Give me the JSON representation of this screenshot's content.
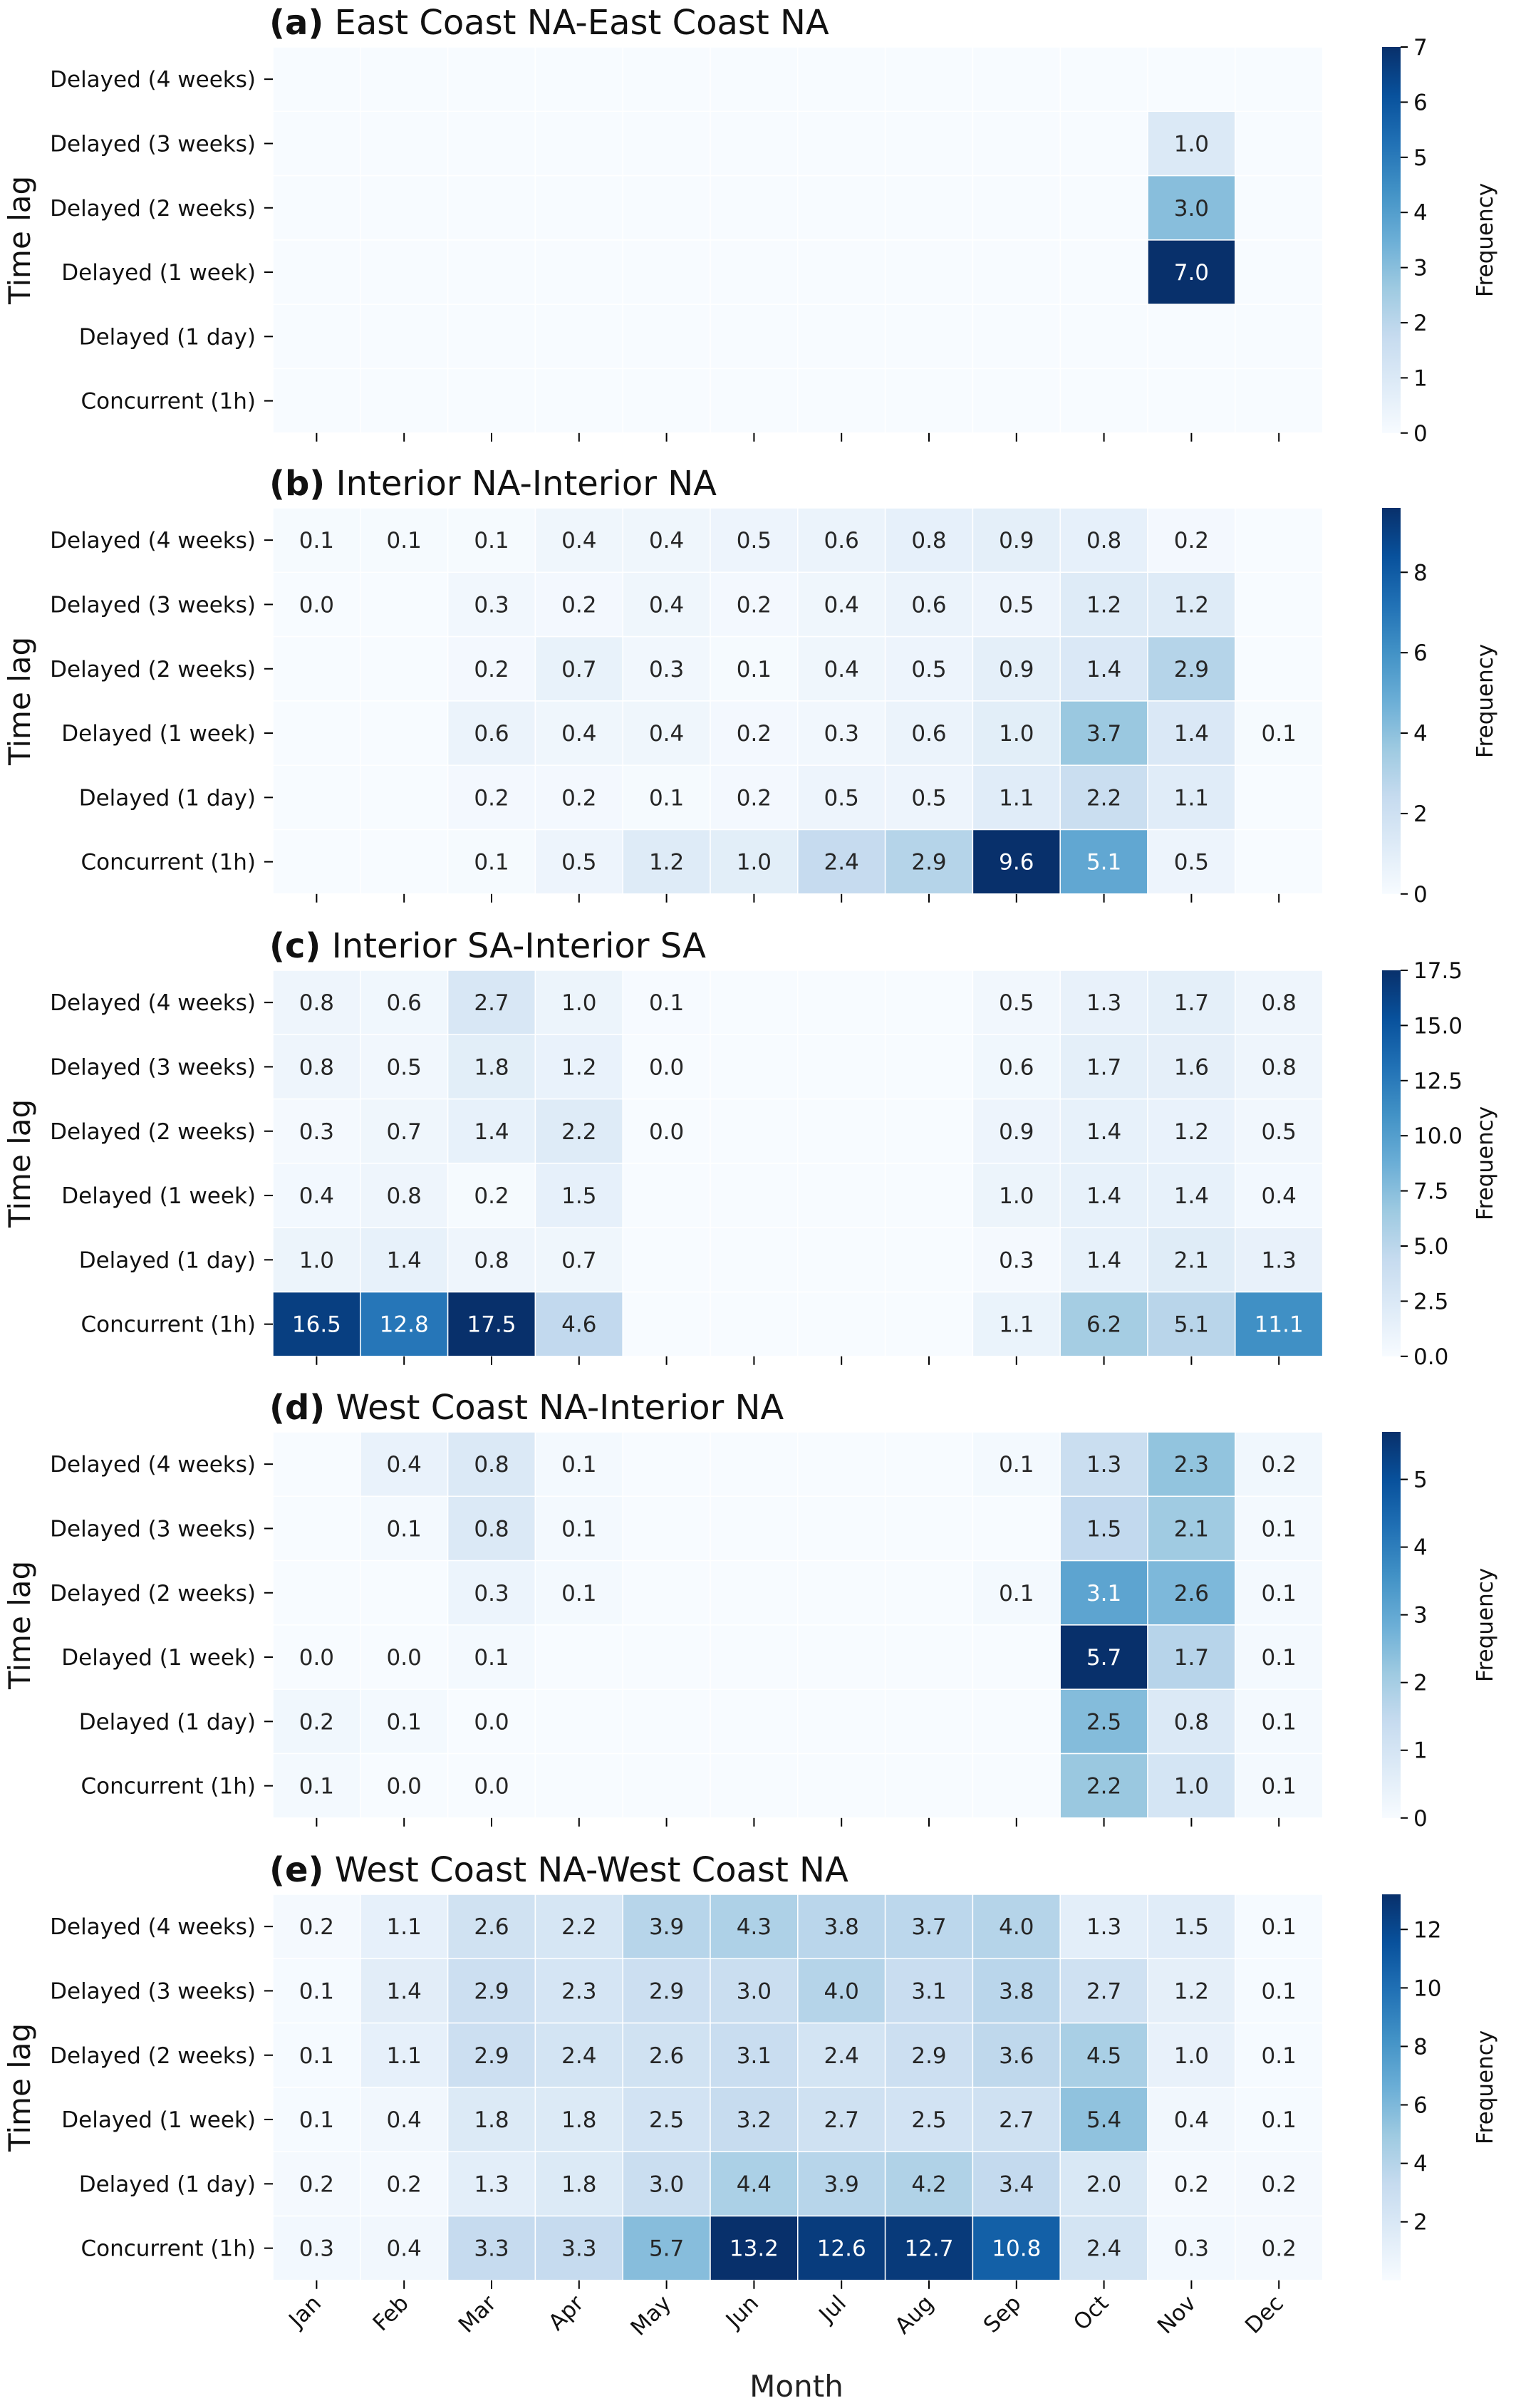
{
  "figure": {
    "xlabel": "Month",
    "months": [
      "Jan",
      "Feb",
      "Mar",
      "Apr",
      "May",
      "Jun",
      "Jul",
      "Aug",
      "Sep",
      "Oct",
      "Nov",
      "Dec"
    ],
    "time_lags": [
      "Delayed (4 weeks)",
      "Delayed (3 weeks)",
      "Delayed (2 weeks)",
      "Delayed (1 week)",
      "Delayed (1 day)",
      "Concurrent (1h)"
    ]
  },
  "colormap": {
    "name": "Blues",
    "low": "#f7fbff",
    "high": "#08306b"
  },
  "chart_data": [
    {
      "type": "heatmap",
      "panel": "(a)",
      "title": "East Coast NA-East Coast NA",
      "ylabel": "Time lag",
      "colorbar_label": "Frequency",
      "vmin": 0,
      "vmax": 7,
      "colorbar_ticks": [
        "0",
        "1",
        "2",
        "3",
        "4",
        "5",
        "6",
        "7"
      ],
      "x": [
        "Jan",
        "Feb",
        "Mar",
        "Apr",
        "May",
        "Jun",
        "Jul",
        "Aug",
        "Sep",
        "Oct",
        "Nov",
        "Dec"
      ],
      "y": [
        "Delayed (4 weeks)",
        "Delayed (3 weeks)",
        "Delayed (2 weeks)",
        "Delayed (1 week)",
        "Delayed (1 day)",
        "Concurrent (1h)"
      ],
      "values": [
        [
          null,
          null,
          null,
          null,
          null,
          null,
          null,
          null,
          null,
          null,
          null,
          null
        ],
        [
          null,
          null,
          null,
          null,
          null,
          null,
          null,
          null,
          null,
          null,
          1.0,
          null
        ],
        [
          null,
          null,
          null,
          null,
          null,
          null,
          null,
          null,
          null,
          null,
          3.0,
          null
        ],
        [
          null,
          null,
          null,
          null,
          null,
          null,
          null,
          null,
          null,
          null,
          7.0,
          null
        ],
        [
          null,
          null,
          null,
          null,
          null,
          null,
          null,
          null,
          null,
          null,
          null,
          null
        ],
        [
          null,
          null,
          null,
          null,
          null,
          null,
          null,
          null,
          null,
          null,
          null,
          null
        ]
      ]
    },
    {
      "type": "heatmap",
      "panel": "(b)",
      "title": "Interior NA-Interior NA",
      "ylabel": "Time lag",
      "colorbar_label": "Frequency",
      "vmin": 0,
      "vmax": 9.6,
      "colorbar_ticks": [
        "0",
        "2",
        "4",
        "6",
        "8"
      ],
      "x": [
        "Jan",
        "Feb",
        "Mar",
        "Apr",
        "May",
        "Jun",
        "Jul",
        "Aug",
        "Sep",
        "Oct",
        "Nov",
        "Dec"
      ],
      "y": [
        "Delayed (4 weeks)",
        "Delayed (3 weeks)",
        "Delayed (2 weeks)",
        "Delayed (1 week)",
        "Delayed (1 day)",
        "Concurrent (1h)"
      ],
      "values": [
        [
          0.1,
          0.1,
          0.1,
          0.4,
          0.4,
          0.5,
          0.6,
          0.8,
          0.9,
          0.8,
          0.2,
          null
        ],
        [
          0.0,
          null,
          0.3,
          0.2,
          0.4,
          0.2,
          0.4,
          0.6,
          0.5,
          1.2,
          1.2,
          null
        ],
        [
          null,
          null,
          0.2,
          0.7,
          0.3,
          0.1,
          0.4,
          0.5,
          0.9,
          1.4,
          2.9,
          null
        ],
        [
          null,
          null,
          0.6,
          0.4,
          0.4,
          0.2,
          0.3,
          0.6,
          1.0,
          3.7,
          1.4,
          0.1
        ],
        [
          null,
          null,
          0.2,
          0.2,
          0.1,
          0.2,
          0.5,
          0.5,
          1.1,
          2.2,
          1.1,
          null
        ],
        [
          null,
          null,
          0.1,
          0.5,
          1.2,
          1.0,
          2.4,
          2.9,
          9.6,
          5.1,
          0.5,
          null
        ]
      ]
    },
    {
      "type": "heatmap",
      "panel": "(c)",
      "title": "Interior SA-Interior SA",
      "ylabel": "Time lag",
      "colorbar_label": "Frequency",
      "vmin": 0,
      "vmax": 17.5,
      "colorbar_ticks": [
        "0.0",
        "2.5",
        "5.0",
        "7.5",
        "10.0",
        "12.5",
        "15.0",
        "17.5"
      ],
      "x": [
        "Jan",
        "Feb",
        "Mar",
        "Apr",
        "May",
        "Jun",
        "Jul",
        "Aug",
        "Sep",
        "Oct",
        "Nov",
        "Dec"
      ],
      "y": [
        "Delayed (4 weeks)",
        "Delayed (3 weeks)",
        "Delayed (2 weeks)",
        "Delayed (1 week)",
        "Delayed (1 day)",
        "Concurrent (1h)"
      ],
      "values": [
        [
          0.8,
          0.6,
          2.7,
          1.0,
          0.1,
          null,
          null,
          null,
          0.5,
          1.3,
          1.7,
          0.8
        ],
        [
          0.8,
          0.5,
          1.8,
          1.2,
          0.0,
          null,
          null,
          null,
          0.6,
          1.7,
          1.6,
          0.8
        ],
        [
          0.3,
          0.7,
          1.4,
          2.2,
          0.0,
          null,
          null,
          null,
          0.9,
          1.4,
          1.2,
          0.5
        ],
        [
          0.4,
          0.8,
          0.2,
          1.5,
          null,
          null,
          null,
          null,
          1.0,
          1.4,
          1.4,
          0.4
        ],
        [
          1.0,
          1.4,
          0.8,
          0.7,
          null,
          null,
          null,
          null,
          0.3,
          1.4,
          2.1,
          1.3
        ],
        [
          16.5,
          12.8,
          17.5,
          4.6,
          null,
          null,
          null,
          null,
          1.1,
          6.2,
          5.1,
          11.1
        ]
      ]
    },
    {
      "type": "heatmap",
      "panel": "(d)",
      "title": "West Coast NA-Interior NA",
      "ylabel": "Time lag",
      "colorbar_label": "Frequency",
      "vmin": 0,
      "vmax": 5.7,
      "colorbar_ticks": [
        "0",
        "1",
        "2",
        "3",
        "4",
        "5"
      ],
      "x": [
        "Jan",
        "Feb",
        "Mar",
        "Apr",
        "May",
        "Jun",
        "Jul",
        "Aug",
        "Sep",
        "Oct",
        "Nov",
        "Dec"
      ],
      "y": [
        "Delayed (4 weeks)",
        "Delayed (3 weeks)",
        "Delayed (2 weeks)",
        "Delayed (1 week)",
        "Delayed (1 day)",
        "Concurrent (1h)"
      ],
      "values": [
        [
          null,
          0.4,
          0.8,
          0.1,
          null,
          null,
          null,
          null,
          0.1,
          1.3,
          2.3,
          0.2
        ],
        [
          null,
          0.1,
          0.8,
          0.1,
          null,
          null,
          null,
          null,
          null,
          1.5,
          2.1,
          0.1
        ],
        [
          null,
          null,
          0.3,
          0.1,
          null,
          null,
          null,
          null,
          0.1,
          3.1,
          2.6,
          0.1
        ],
        [
          0.0,
          0.0,
          0.1,
          null,
          null,
          null,
          null,
          null,
          null,
          5.7,
          1.7,
          0.1
        ],
        [
          0.2,
          0.1,
          0.0,
          null,
          null,
          null,
          null,
          null,
          null,
          2.5,
          0.8,
          0.1
        ],
        [
          0.1,
          0.0,
          0.0,
          null,
          null,
          null,
          null,
          null,
          null,
          2.2,
          1.0,
          0.1
        ]
      ]
    },
    {
      "type": "heatmap",
      "panel": "(e)",
      "title": "West Coast NA-West Coast NA",
      "ylabel": "Time lag",
      "colorbar_label": "Frequency",
      "vmin": 0,
      "vmax": 13.2,
      "colorbar_ticks": [
        "2",
        "4",
        "6",
        "8",
        "10",
        "12"
      ],
      "x": [
        "Jan",
        "Feb",
        "Mar",
        "Apr",
        "May",
        "Jun",
        "Jul",
        "Aug",
        "Sep",
        "Oct",
        "Nov",
        "Dec"
      ],
      "y": [
        "Delayed (4 weeks)",
        "Delayed (3 weeks)",
        "Delayed (2 weeks)",
        "Delayed (1 week)",
        "Delayed (1 day)",
        "Concurrent (1h)"
      ],
      "values": [
        [
          0.2,
          1.1,
          2.6,
          2.2,
          3.9,
          4.3,
          3.8,
          3.7,
          4.0,
          1.3,
          1.5,
          0.1
        ],
        [
          0.1,
          1.4,
          2.9,
          2.3,
          2.9,
          3.0,
          4.0,
          3.1,
          3.8,
          2.7,
          1.2,
          0.1
        ],
        [
          0.1,
          1.1,
          2.9,
          2.4,
          2.6,
          3.1,
          2.4,
          2.9,
          3.6,
          4.5,
          1.0,
          0.1
        ],
        [
          0.1,
          0.4,
          1.8,
          1.8,
          2.5,
          3.2,
          2.7,
          2.5,
          2.7,
          5.4,
          0.4,
          0.1
        ],
        [
          0.2,
          0.2,
          1.3,
          1.8,
          3.0,
          4.4,
          3.9,
          4.2,
          3.4,
          2.0,
          0.2,
          0.2
        ],
        [
          0.3,
          0.4,
          3.3,
          3.3,
          5.7,
          13.2,
          12.6,
          12.7,
          10.8,
          2.4,
          0.3,
          0.2
        ]
      ]
    }
  ]
}
